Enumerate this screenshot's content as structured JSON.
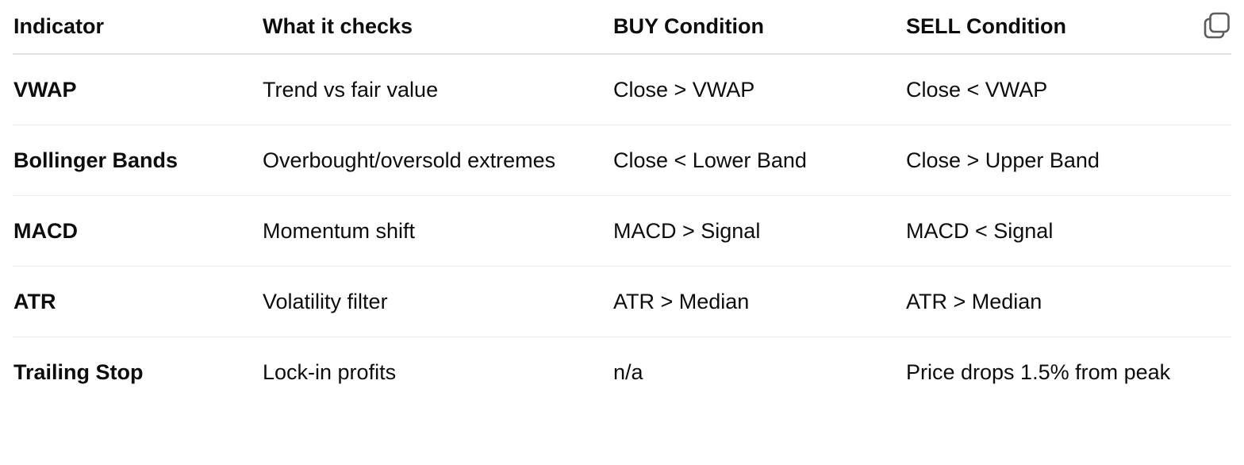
{
  "table": {
    "headers": [
      "Indicator",
      "What it checks",
      "BUY Condition",
      "SELL Condition"
    ],
    "rows": [
      [
        "VWAP",
        "Trend vs fair value",
        "Close > VWAP",
        "Close < VWAP"
      ],
      [
        "Bollinger Bands",
        "Overbought/oversold extremes",
        "Close < Lower Band",
        "Close > Upper Band"
      ],
      [
        "MACD",
        "Momentum shift",
        "MACD > Signal",
        "MACD < Signal"
      ],
      [
        "ATR",
        "Volatility filter",
        "ATR > Median",
        "ATR > Median"
      ],
      [
        "Trailing Stop",
        "Lock-in profits",
        "n/a",
        "Price drops 1.5% from peak"
      ]
    ]
  },
  "icons": {
    "copy": "copy-icon"
  },
  "colors": {
    "text": "#0d0d0d",
    "divider": "#e0e0e0",
    "icon": "#5d5d5d"
  }
}
